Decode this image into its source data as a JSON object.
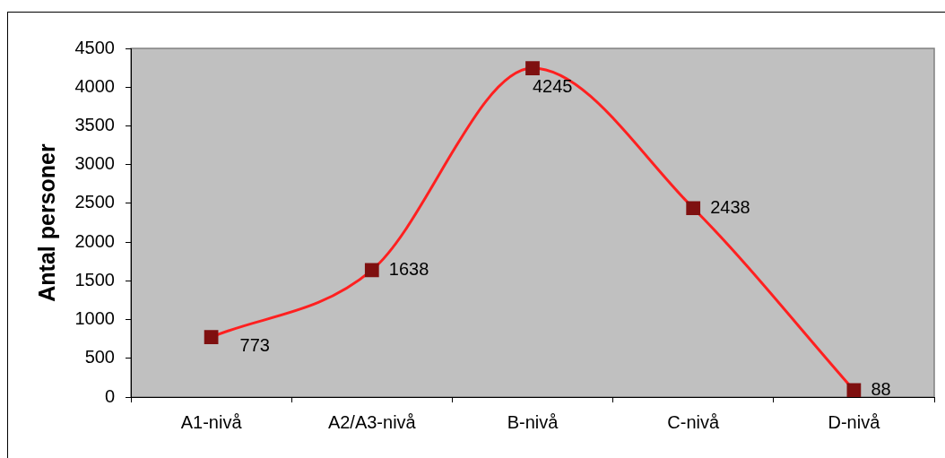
{
  "chart_data": {
    "type": "line",
    "ylabel": "Antal personer",
    "categories": [
      "A1-nivå",
      "A2/A3-nivå",
      "B-nivå",
      "C-nivå",
      "D-nivå"
    ],
    "series": [
      {
        "color": "#ff2020",
        "colors": [
          "#7f1010",
          "#7f1010",
          "#7f1010",
          "#7f1010",
          "#7f1010"
        ],
        "values": [
          773,
          1638,
          4245,
          2438,
          88
        ]
      }
    ],
    "ylim": [
      0,
      4500
    ],
    "yticks": [
      0,
      500,
      1000,
      1500,
      2000,
      2500,
      3000,
      3500,
      4000,
      4500
    ],
    "grid": false,
    "legend": false,
    "marker": "square",
    "line_style": "solid",
    "data_labels": true
  }
}
